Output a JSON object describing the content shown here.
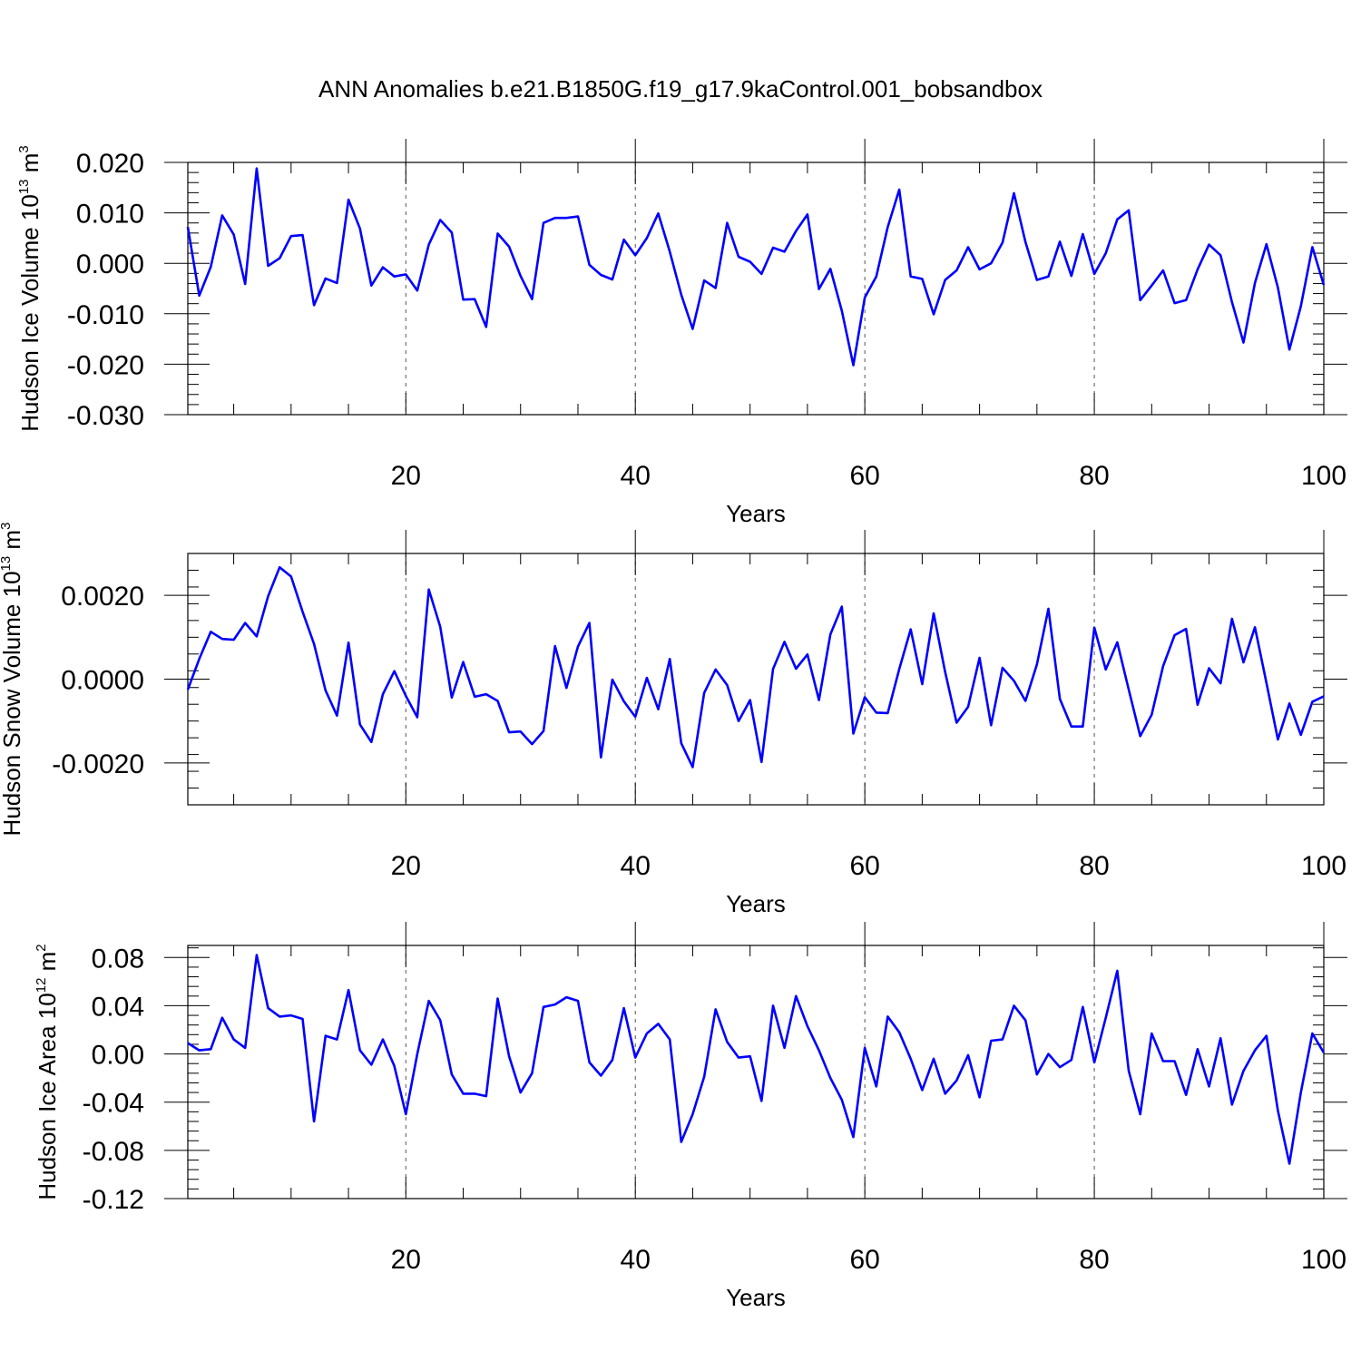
{
  "title": "ANN Anomalies b.e21.B1850G.f19_g17.9kaControl.001_bobsandbox",
  "colors": {
    "line": "#0000ff",
    "axis": "#000000",
    "grid": "#555555"
  },
  "chart_data": [
    {
      "type": "line",
      "id": "ice-volume",
      "ylabel": "Hudson Ice Volume 10",
      "ylabel_exp": "13",
      "ylabel_unit": "m",
      "ylabel_unit_exp": "3",
      "xlabel": "Years",
      "xlim": [
        1,
        100
      ],
      "ylim": [
        -0.03,
        0.02
      ],
      "xticks": [
        20,
        40,
        60,
        80,
        100
      ],
      "yticks": [
        0.02,
        0.01,
        0.0,
        -0.01,
        -0.02,
        -0.03
      ],
      "ytick_labels": [
        "0.020",
        "0.010",
        "0.000",
        "-0.010",
        "-0.020",
        "-0.030"
      ],
      "grid_x": [
        20,
        40,
        60,
        80
      ],
      "series": [
        {
          "values": [
            0.0072,
            -0.0064,
            -0.0007,
            0.0095,
            0.0057,
            -0.0041,
            0.0188,
            -0.0005,
            0.001,
            0.0054,
            0.0056,
            -0.0083,
            -0.003,
            -0.0039,
            0.0126,
            0.0069,
            -0.0044,
            -0.0008,
            -0.0026,
            -0.0022,
            -0.0054,
            0.0037,
            0.0086,
            0.0061,
            -0.0072,
            -0.0071,
            -0.0126,
            0.0059,
            0.0033,
            -0.0025,
            -0.0071,
            0.008,
            0.009,
            0.009,
            0.0093,
            -0.0003,
            -0.0023,
            -0.0032,
            0.0047,
            0.0016,
            0.005,
            0.0099,
            0.0023,
            -0.0062,
            -0.013,
            -0.0034,
            -0.0049,
            0.008,
            0.0013,
            0.0003,
            -0.0021,
            0.0031,
            0.0023,
            0.0064,
            0.0097,
            -0.0051,
            -0.0011,
            -0.0094,
            -0.0202,
            -0.0068,
            -0.0026,
            0.0072,
            0.0146,
            -0.0026,
            -0.0031,
            -0.0101,
            -0.0033,
            -0.0014,
            0.0032,
            -0.0012,
            0.0,
            0.0041,
            0.0139,
            0.0042,
            -0.0033,
            -0.0026,
            0.0043,
            -0.0025,
            0.0058,
            -0.0021,
            0.002,
            0.0087,
            0.0105,
            -0.0073,
            -0.0044,
            -0.0014,
            -0.0079,
            -0.0073,
            -0.0012,
            0.0037,
            0.0016,
            -0.0077,
            -0.0157,
            -0.0039,
            0.0038,
            -0.0048,
            -0.0171,
            -0.0085,
            0.0032,
            -0.0043
          ]
        }
      ]
    },
    {
      "type": "line",
      "id": "snow-volume",
      "ylabel": "Hudson Snow Volume 10",
      "ylabel_exp": "13",
      "ylabel_unit": "m",
      "ylabel_unit_exp": "3",
      "xlabel": "Years",
      "xlim": [
        1,
        100
      ],
      "ylim": [
        -0.003,
        0.003
      ],
      "xticks": [
        20,
        40,
        60,
        80,
        100
      ],
      "yticks": [
        0.002,
        0.0,
        -0.002
      ],
      "ytick_labels": [
        "0.0020",
        "0.0000",
        "-0.0020"
      ],
      "grid_x": [
        20,
        40,
        60,
        80
      ],
      "series": [
        {
          "values": [
            -0.00025,
            0.00048,
            0.00113,
            0.00096,
            0.00094,
            0.00134,
            0.00102,
            0.00198,
            0.00267,
            0.00245,
            0.00161,
            0.00084,
            -0.00027,
            -0.00087,
            0.00087,
            -0.00108,
            -0.0015,
            -0.00036,
            0.00019,
            -0.0004,
            -0.00091,
            0.00214,
            0.00125,
            -0.00044,
            0.00041,
            -0.00042,
            -0.00036,
            -0.00052,
            -0.00127,
            -0.00125,
            -0.00155,
            -0.00124,
            0.00079,
            -0.00021,
            0.00078,
            0.00134,
            -0.00187,
            -1e-05,
            -0.00053,
            -0.0009,
            3e-05,
            -0.00072,
            0.00048,
            -0.00153,
            -0.0021,
            -0.00033,
            0.00023,
            -0.00014,
            -0.001,
            -0.0005,
            -0.00198,
            0.00024,
            0.00089,
            0.00025,
            0.00059,
            -0.0005,
            0.00107,
            0.00173,
            -0.0013,
            -0.00043,
            -0.0008,
            -0.00081,
            0.00024,
            0.00119,
            -0.00012,
            0.00157,
            0.00017,
            -0.00104,
            -0.00066,
            0.00051,
            -0.0011,
            0.00027,
            -4e-05,
            -0.00052,
            0.00035,
            0.00168,
            -0.00047,
            -0.00113,
            -0.00113,
            0.00123,
            0.00023,
            0.00088,
            -0.00025,
            -0.00136,
            -0.00085,
            0.00031,
            0.00105,
            0.0012,
            -0.00061,
            0.00026,
            -0.0001,
            0.00144,
            0.0004,
            0.00124,
            -9e-05,
            -0.00144,
            -0.00058,
            -0.00133,
            -0.00054,
            -0.00041
          ]
        }
      ]
    },
    {
      "type": "line",
      "id": "ice-area",
      "ylabel": "Hudson Ice Area 10",
      "ylabel_exp": "12",
      "ylabel_unit": "m",
      "ylabel_unit_exp": "2",
      "xlabel": "Years",
      "xlim": [
        1,
        100
      ],
      "ylim": [
        -0.12,
        0.09
      ],
      "xticks": [
        20,
        40,
        60,
        80,
        100
      ],
      "yticks": [
        0.08,
        0.04,
        0.0,
        -0.04,
        -0.08,
        -0.12
      ],
      "ytick_labels": [
        "0.08",
        "0.04",
        "0.00",
        "-0.04",
        "-0.08",
        "-0.12"
      ],
      "grid_x": [
        20,
        40,
        60,
        80
      ],
      "series": [
        {
          "values": [
            0.009,
            0.003,
            0.004,
            0.03,
            0.012,
            0.005,
            0.082,
            0.038,
            0.031,
            0.032,
            0.029,
            -0.056,
            0.015,
            0.012,
            0.053,
            0.003,
            -0.009,
            0.012,
            -0.01,
            -0.05,
            0.0,
            0.044,
            0.028,
            -0.017,
            -0.033,
            -0.033,
            -0.035,
            0.046,
            -0.002,
            -0.032,
            -0.016,
            0.039,
            0.041,
            0.047,
            0.044,
            -0.007,
            -0.018,
            -0.005,
            0.038,
            -0.003,
            0.017,
            0.025,
            0.012,
            -0.073,
            -0.05,
            -0.019,
            0.037,
            0.01,
            -0.003,
            -0.002,
            -0.039,
            0.04,
            0.005,
            0.048,
            0.023,
            0.003,
            -0.02,
            -0.038,
            -0.069,
            0.005,
            -0.027,
            0.031,
            0.018,
            -0.004,
            -0.03,
            -0.004,
            -0.033,
            -0.022,
            -0.001,
            -0.036,
            0.011,
            0.012,
            0.04,
            0.028,
            -0.017,
            0.0,
            -0.011,
            -0.005,
            0.039,
            -0.007,
            0.03,
            0.069,
            -0.014,
            -0.05,
            0.017,
            -0.006,
            -0.006,
            -0.034,
            0.004,
            -0.027,
            0.013,
            -0.042,
            -0.014,
            0.003,
            0.015,
            -0.047,
            -0.091,
            -0.032,
            0.017,
            0.001
          ]
        }
      ]
    }
  ]
}
